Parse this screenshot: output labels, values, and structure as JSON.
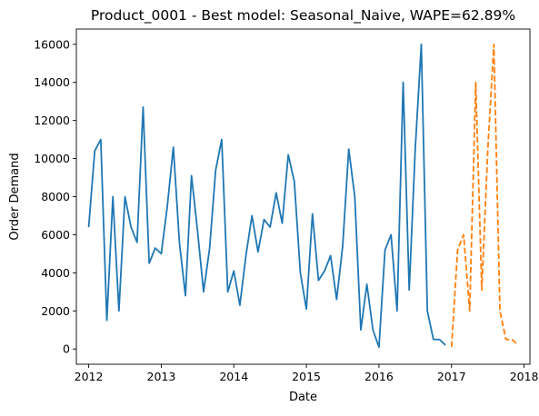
{
  "chart_data": {
    "type": "line",
    "title": "Product_0001 - Best model: Seasonal_Naive, WAPE=62.89%",
    "xlabel": "Date",
    "ylabel": "Order Demand",
    "xlim": [
      2011.83,
      2018.08
    ],
    "ylim": [
      -800,
      16800
    ],
    "xticks": [
      2012,
      2013,
      2014,
      2015,
      2016,
      2017,
      2018
    ],
    "yticks": [
      0,
      2000,
      4000,
      6000,
      8000,
      10000,
      12000,
      14000,
      16000
    ],
    "grid": false,
    "legend": "none",
    "colors": {
      "actual": "#1f77b4",
      "forecast": "#ff7f0e"
    },
    "series": [
      {
        "style": "solid",
        "x": [
          "2012-01",
          "2012-02",
          "2012-03",
          "2012-04",
          "2012-05",
          "2012-06",
          "2012-07",
          "2012-08",
          "2012-09",
          "2012-10",
          "2012-11",
          "2012-12",
          "2013-01",
          "2013-02",
          "2013-03",
          "2013-04",
          "2013-05",
          "2013-06",
          "2013-07",
          "2013-08",
          "2013-09",
          "2013-10",
          "2013-11",
          "2013-12",
          "2014-01",
          "2014-02",
          "2014-03",
          "2014-04",
          "2014-05",
          "2014-06",
          "2014-07",
          "2014-08",
          "2014-09",
          "2014-10",
          "2014-11",
          "2014-12",
          "2015-01",
          "2015-02",
          "2015-03",
          "2015-04",
          "2015-05",
          "2015-06",
          "2015-07",
          "2015-08",
          "2015-09",
          "2015-10",
          "2015-11",
          "2015-12",
          "2016-01",
          "2016-02",
          "2016-03",
          "2016-04",
          "2016-05",
          "2016-06",
          "2016-07",
          "2016-08",
          "2016-09",
          "2016-10",
          "2016-11",
          "2016-12"
        ],
        "y": [
          6400,
          10400,
          11000,
          1500,
          8000,
          2000,
          8000,
          6400,
          5600,
          12700,
          4500,
          5300,
          5000,
          7500,
          10600,
          5600,
          2800,
          9100,
          6200,
          3000,
          5300,
          9400,
          11000,
          3000,
          4100,
          2300,
          4900,
          7000,
          5100,
          6800,
          6400,
          8200,
          6600,
          10200,
          8800,
          4000,
          2100,
          7100,
          3600,
          4100,
          4900,
          2600,
          5400,
          10500,
          8000,
          1000,
          3400,
          1000,
          100,
          5200,
          6000,
          2000,
          14000,
          3100,
          10500,
          16000,
          2000,
          500,
          500,
          200
        ]
      },
      {
        "style": "dashed",
        "x": [
          "2017-01",
          "2017-02",
          "2017-03",
          "2017-04",
          "2017-05",
          "2017-06",
          "2017-07",
          "2017-08",
          "2017-09",
          "2017-10",
          "2017-11",
          "2017-12"
        ],
        "y": [
          100,
          5200,
          6000,
          2000,
          14000,
          3100,
          10500,
          16000,
          2000,
          500,
          500,
          200
        ]
      }
    ]
  }
}
